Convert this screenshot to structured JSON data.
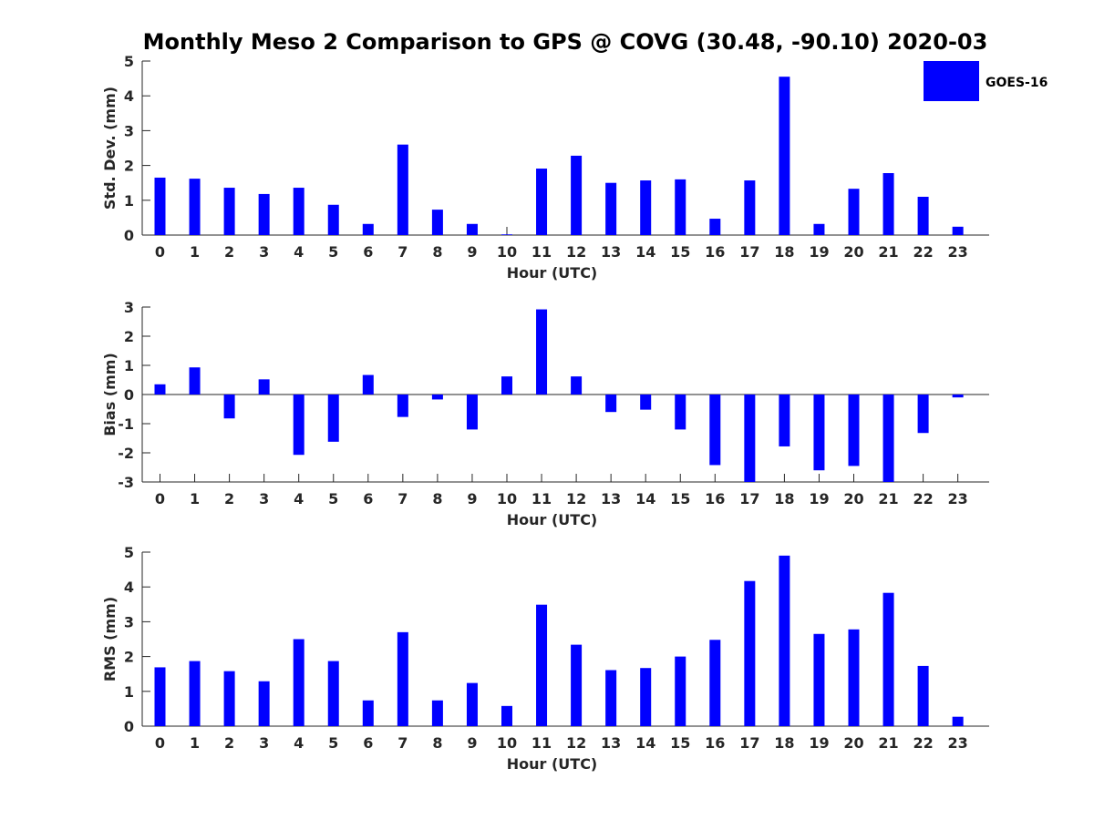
{
  "colors": {
    "bar": "#0000FF",
    "axis": "#262626",
    "background": "#FFFFFF"
  },
  "chart_data": {
    "type": "bar",
    "title": "Monthly Meso 2 Comparison to GPS @ COVG (30.48, -90.10) 2020-03",
    "legend": {
      "label": "GOES-16",
      "placement": "top-right"
    },
    "categories": [
      "0",
      "1",
      "2",
      "3",
      "4",
      "5",
      "6",
      "7",
      "8",
      "9",
      "10",
      "11",
      "12",
      "13",
      "14",
      "15",
      "16",
      "17",
      "18",
      "19",
      "20",
      "21",
      "22",
      "23"
    ],
    "panels": [
      {
        "name": "std-dev",
        "xlabel": "Hour (UTC)",
        "ylabel": "Std. Dev. (mm)",
        "ylim": [
          0,
          5
        ],
        "yticks": [
          "0",
          "1",
          "2",
          "3",
          "4",
          "5"
        ],
        "series": [
          {
            "name": "GOES-16",
            "values": [
              1.65,
              1.62,
              1.36,
              1.18,
              1.36,
              0.87,
              0.32,
              2.6,
              0.73,
              0.32,
              0.02,
              1.91,
              2.28,
              1.5,
              1.57,
              1.6,
              0.47,
              1.57,
              4.55,
              0.32,
              1.33,
              1.78,
              1.1,
              0.24
            ]
          }
        ]
      },
      {
        "name": "bias",
        "xlabel": "Hour (UTC)",
        "ylabel": "Bias (mm)",
        "ylim": [
          -3,
          3
        ],
        "yticks": [
          "-3",
          "-2",
          "-1",
          "0",
          "1",
          "2",
          "3"
        ],
        "series": [
          {
            "name": "GOES-16",
            "values": [
              0.35,
              0.93,
              -0.82,
              0.52,
              -2.07,
              -1.62,
              0.67,
              -0.77,
              -0.17,
              -1.2,
              0.62,
              2.92,
              0.62,
              -0.6,
              -0.52,
              -1.2,
              -2.42,
              -3.0,
              -1.78,
              -2.6,
              -2.45,
              -3.0,
              -1.32,
              -0.1
            ]
          }
        ]
      },
      {
        "name": "rms",
        "xlabel": "Hour (UTC)",
        "ylabel": "RMS (mm)",
        "ylim": [
          0,
          5
        ],
        "yticks": [
          "0",
          "1",
          "2",
          "3",
          "4",
          "5"
        ],
        "series": [
          {
            "name": "GOES-16",
            "values": [
              1.69,
              1.87,
              1.58,
              1.29,
              2.5,
              1.87,
              0.74,
              2.7,
              0.74,
              1.24,
              0.58,
              3.49,
              2.34,
              1.61,
              1.67,
              2.0,
              2.48,
              4.17,
              4.9,
              2.65,
              2.78,
              3.83,
              1.73,
              0.27
            ]
          }
        ]
      }
    ]
  }
}
